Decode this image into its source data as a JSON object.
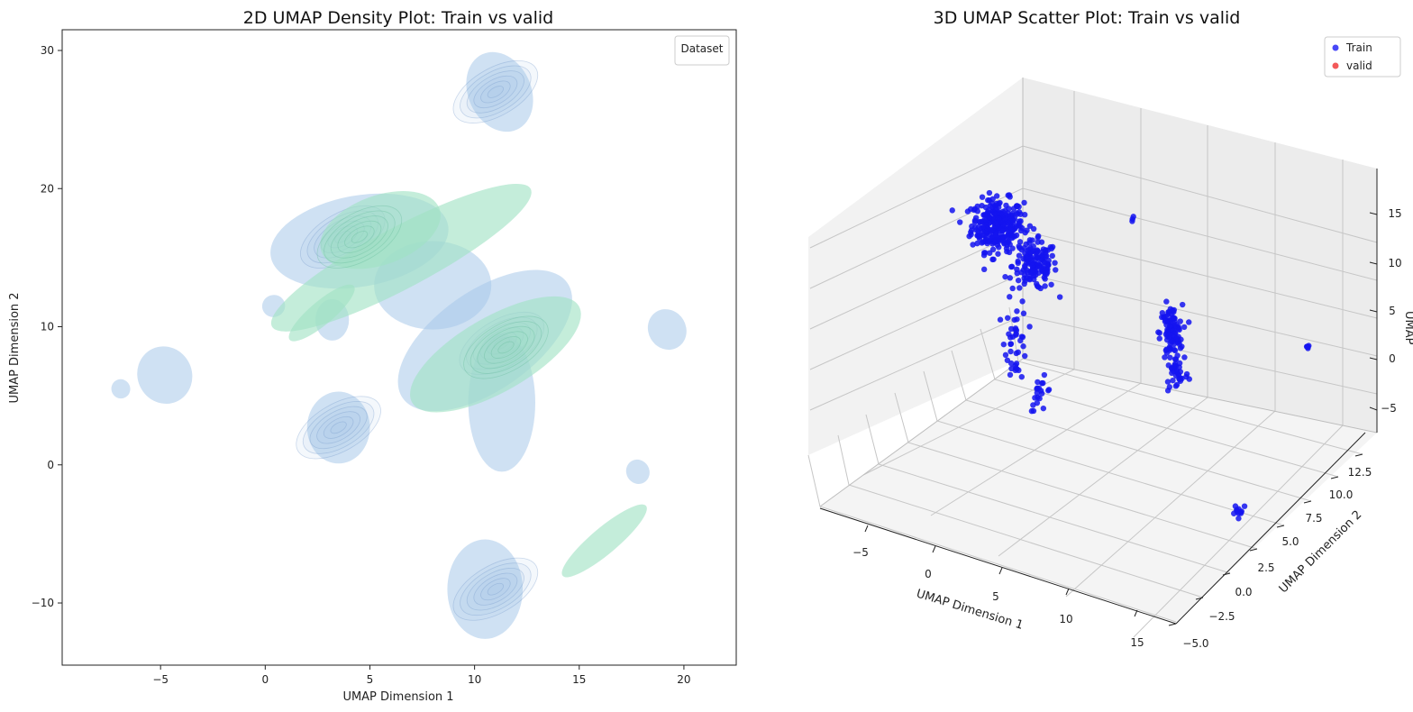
{
  "chart_data": [
    {
      "type": "density",
      "title": "2D UMAP Density Plot: Train vs valid",
      "xlabel": "UMAP Dimension 1",
      "ylabel": "UMAP Dimension 2",
      "xlim": [
        -9.7,
        22.5
      ],
      "ylim": [
        -14.5,
        31.5
      ],
      "xticks": [
        -5,
        0,
        5,
        10,
        15,
        20
      ],
      "yticks": [
        -10,
        0,
        10,
        20,
        30
      ],
      "xtick_labels": [
        "−5",
        "0",
        "5",
        "10",
        "15",
        "20"
      ],
      "ytick_labels": [
        "−10",
        "0",
        "10",
        "20",
        "30"
      ],
      "legend": {
        "title": "Dataset",
        "placement": "upper-right",
        "entries": []
      },
      "series": [
        {
          "color": "#a8c8ea",
          "regions": [
            {
              "cx": 4.5,
              "cy": 16.2,
              "rx": 4.3,
              "ry": 3.3,
              "rot": -10
            },
            {
              "cx": 8.0,
              "cy": 13.0,
              "rx": 2.8,
              "ry": 3.2,
              "rot": 0
            },
            {
              "cx": 10.5,
              "cy": 9.0,
              "rx": 4.8,
              "ry": 3.6,
              "rot": -35
            },
            {
              "cx": 11.3,
              "cy": 4.5,
              "rx": 1.6,
              "ry": 5.0,
              "rot": 0
            },
            {
              "cx": 11.2,
              "cy": 27.0,
              "rx": 1.5,
              "ry": 3.0,
              "rot": -25
            },
            {
              "cx": 10.5,
              "cy": -9.0,
              "rx": 1.8,
              "ry": 3.6,
              "rot": 0
            },
            {
              "cx": 3.5,
              "cy": 2.7,
              "rx": 1.5,
              "ry": 2.6,
              "rot": 0
            },
            {
              "cx": -4.8,
              "cy": 6.5,
              "rx": 1.3,
              "ry": 2.1,
              "rot": -25
            },
            {
              "cx": 19.2,
              "cy": 9.8,
              "rx": 0.9,
              "ry": 1.5,
              "rot": -30
            },
            {
              "cx": 17.8,
              "cy": -0.5,
              "rx": 0.55,
              "ry": 0.9,
              "rot": -30
            },
            {
              "cx": 0.4,
              "cy": 11.5,
              "rx": 0.55,
              "ry": 0.8,
              "rot": -20
            },
            {
              "cx": -6.9,
              "cy": 5.5,
              "rx": 0.45,
              "ry": 0.7,
              "rot": -20
            },
            {
              "cx": 3.2,
              "cy": 10.5,
              "rx": 0.8,
              "ry": 1.5,
              "rot": 0
            }
          ],
          "peaks": [
            {
              "cx": 3.7,
              "cy": 16.5
            },
            {
              "cx": 11.0,
              "cy": 27.0
            },
            {
              "cx": 11.0,
              "cy": -9.0
            },
            {
              "cx": 3.5,
              "cy": 2.7
            },
            {
              "cx": 11.3,
              "cy": 8.8
            }
          ]
        },
        {
          "color": "#9fe2c3",
          "regions": [
            {
              "cx": 6.5,
              "cy": 15.0,
              "rx": 7.0,
              "ry": 2.2,
              "rot": -28
            },
            {
              "cx": 11.0,
              "cy": 8.0,
              "rx": 4.6,
              "ry": 2.7,
              "rot": -30
            },
            {
              "cx": 5.5,
              "cy": 17.0,
              "rx": 3.0,
              "ry": 2.5,
              "rot": -20
            },
            {
              "cx": 2.7,
              "cy": 11.0,
              "rx": 2.0,
              "ry": 0.85,
              "rot": -40
            },
            {
              "cx": 16.2,
              "cy": -5.5,
              "rx": 2.6,
              "ry": 0.95,
              "rot": -40
            }
          ],
          "peaks": [
            {
              "cx": 11.5,
              "cy": 8.5
            },
            {
              "cx": 4.5,
              "cy": 16.5
            }
          ]
        }
      ]
    },
    {
      "type": "scatter3d",
      "title": "3D UMAP Scatter Plot:  Train vs valid",
      "xlabel": "UMAP Dimension 1",
      "ylabel": "UMAP Dimension 2",
      "zlabel": "UMAP",
      "xtick_labels": [
        "−5",
        "0",
        "5",
        "10",
        "15"
      ],
      "ytick_labels": [
        "−5.0",
        "−2.5",
        "0.0",
        "2.5",
        "5.0",
        "7.5",
        "10.0",
        "12.5"
      ],
      "ztick_labels": [
        "−5",
        "0",
        "5",
        "10",
        "15"
      ],
      "legend": {
        "placement": "upper-right",
        "entries": [
          {
            "label": "Train",
            "color": "#1a1af5"
          },
          {
            "label": "valid",
            "color": "#f03030"
          }
        ]
      },
      "series": [
        {
          "name": "Train",
          "color": "#1414f0",
          "clusters": [
            {
              "u": 0.33,
              "v": 0.72,
              "su": 0.035,
              "sv": 0.032,
              "n": 300
            },
            {
              "u": 0.39,
              "v": 0.66,
              "su": 0.03,
              "sv": 0.03,
              "n": 150
            },
            {
              "u": 0.36,
              "v": 0.55,
              "su": 0.015,
              "sv": 0.05,
              "n": 40
            },
            {
              "u": 0.4,
              "v": 0.47,
              "su": 0.015,
              "sv": 0.02,
              "n": 20
            },
            {
              "u": 0.61,
              "v": 0.56,
              "su": 0.015,
              "sv": 0.035,
              "n": 110
            },
            {
              "u": 0.62,
              "v": 0.5,
              "su": 0.015,
              "sv": 0.02,
              "n": 30
            },
            {
              "u": 0.72,
              "v": 0.3,
              "su": 0.012,
              "sv": 0.008,
              "n": 12
            },
            {
              "u": 0.83,
              "v": 0.54,
              "su": 0.002,
              "sv": 0.004,
              "n": 6
            },
            {
              "u": 0.55,
              "v": 0.73,
              "su": 0.004,
              "sv": 0.004,
              "n": 3
            }
          ]
        },
        {
          "name": "valid",
          "color": "#f03030",
          "clusters": []
        }
      ]
    }
  ]
}
